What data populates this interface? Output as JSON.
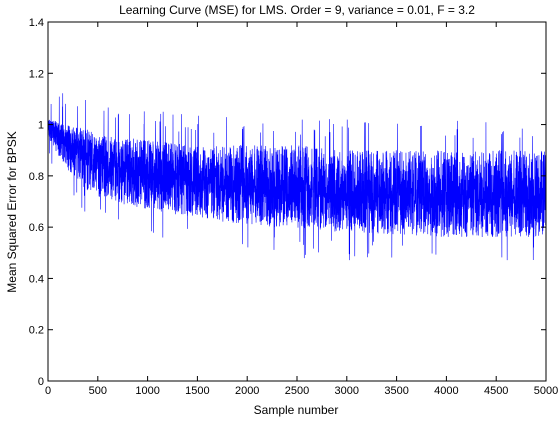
{
  "chart_data": {
    "type": "line",
    "title": "Learning Curve (MSE) for LMS. Order = 9, variance = 0.01, F = 3.2",
    "xlabel": "Sample number",
    "ylabel": "Mean Squared Error for BPSK",
    "xlim": [
      0,
      5000
    ],
    "ylim": [
      0,
      1.4
    ],
    "xticks": [
      0,
      500,
      1000,
      1500,
      2000,
      2500,
      3000,
      3500,
      4000,
      4500,
      5000
    ],
    "xtick_labels": [
      "0",
      "500",
      "1000",
      "1500",
      "2000",
      "2500",
      "3000",
      "3500",
      "4000",
      "4500",
      "5000"
    ],
    "yticks": [
      0,
      0.2,
      0.4,
      0.6,
      0.8,
      1,
      1.2,
      1.4
    ],
    "ytick_labels": [
      "0",
      "0.2",
      "0.4",
      "0.6",
      "0.8",
      "1",
      "1.2",
      "1.4"
    ],
    "grid": false,
    "legend": "none",
    "series": [
      {
        "color": "#0000ff",
        "x": [
          0,
          50,
          100,
          200,
          300,
          400,
          500,
          750,
          1000,
          1250,
          1500,
          1750,
          2000,
          2500,
          3000,
          3500,
          4000,
          4500,
          5000
        ],
        "y": [
          1.0,
          0.99,
          0.97,
          0.94,
          0.91,
          0.88,
          0.86,
          0.83,
          0.81,
          0.79,
          0.775,
          0.765,
          0.755,
          0.74,
          0.73,
          0.72,
          0.715,
          0.71,
          0.71
        ],
        "min": [
          0.95,
          0.92,
          0.88,
          0.82,
          0.78,
          0.74,
          0.72,
          0.69,
          0.67,
          0.65,
          0.64,
          0.62,
          0.61,
          0.59,
          0.58,
          0.57,
          0.56,
          0.56,
          0.56
        ],
        "max": [
          1.02,
          1.02,
          1.01,
          1.0,
          0.99,
          0.98,
          0.96,
          0.95,
          0.94,
          0.93,
          0.92,
          0.92,
          0.92,
          0.92,
          0.9,
          0.9,
          0.9,
          0.9,
          0.9
        ],
        "initial_drop_at_x": 0,
        "initial_value": 0
      }
    ],
    "colors": {
      "line": "#0000ff",
      "axes": "#000000",
      "background": "#ffffff"
    }
  }
}
